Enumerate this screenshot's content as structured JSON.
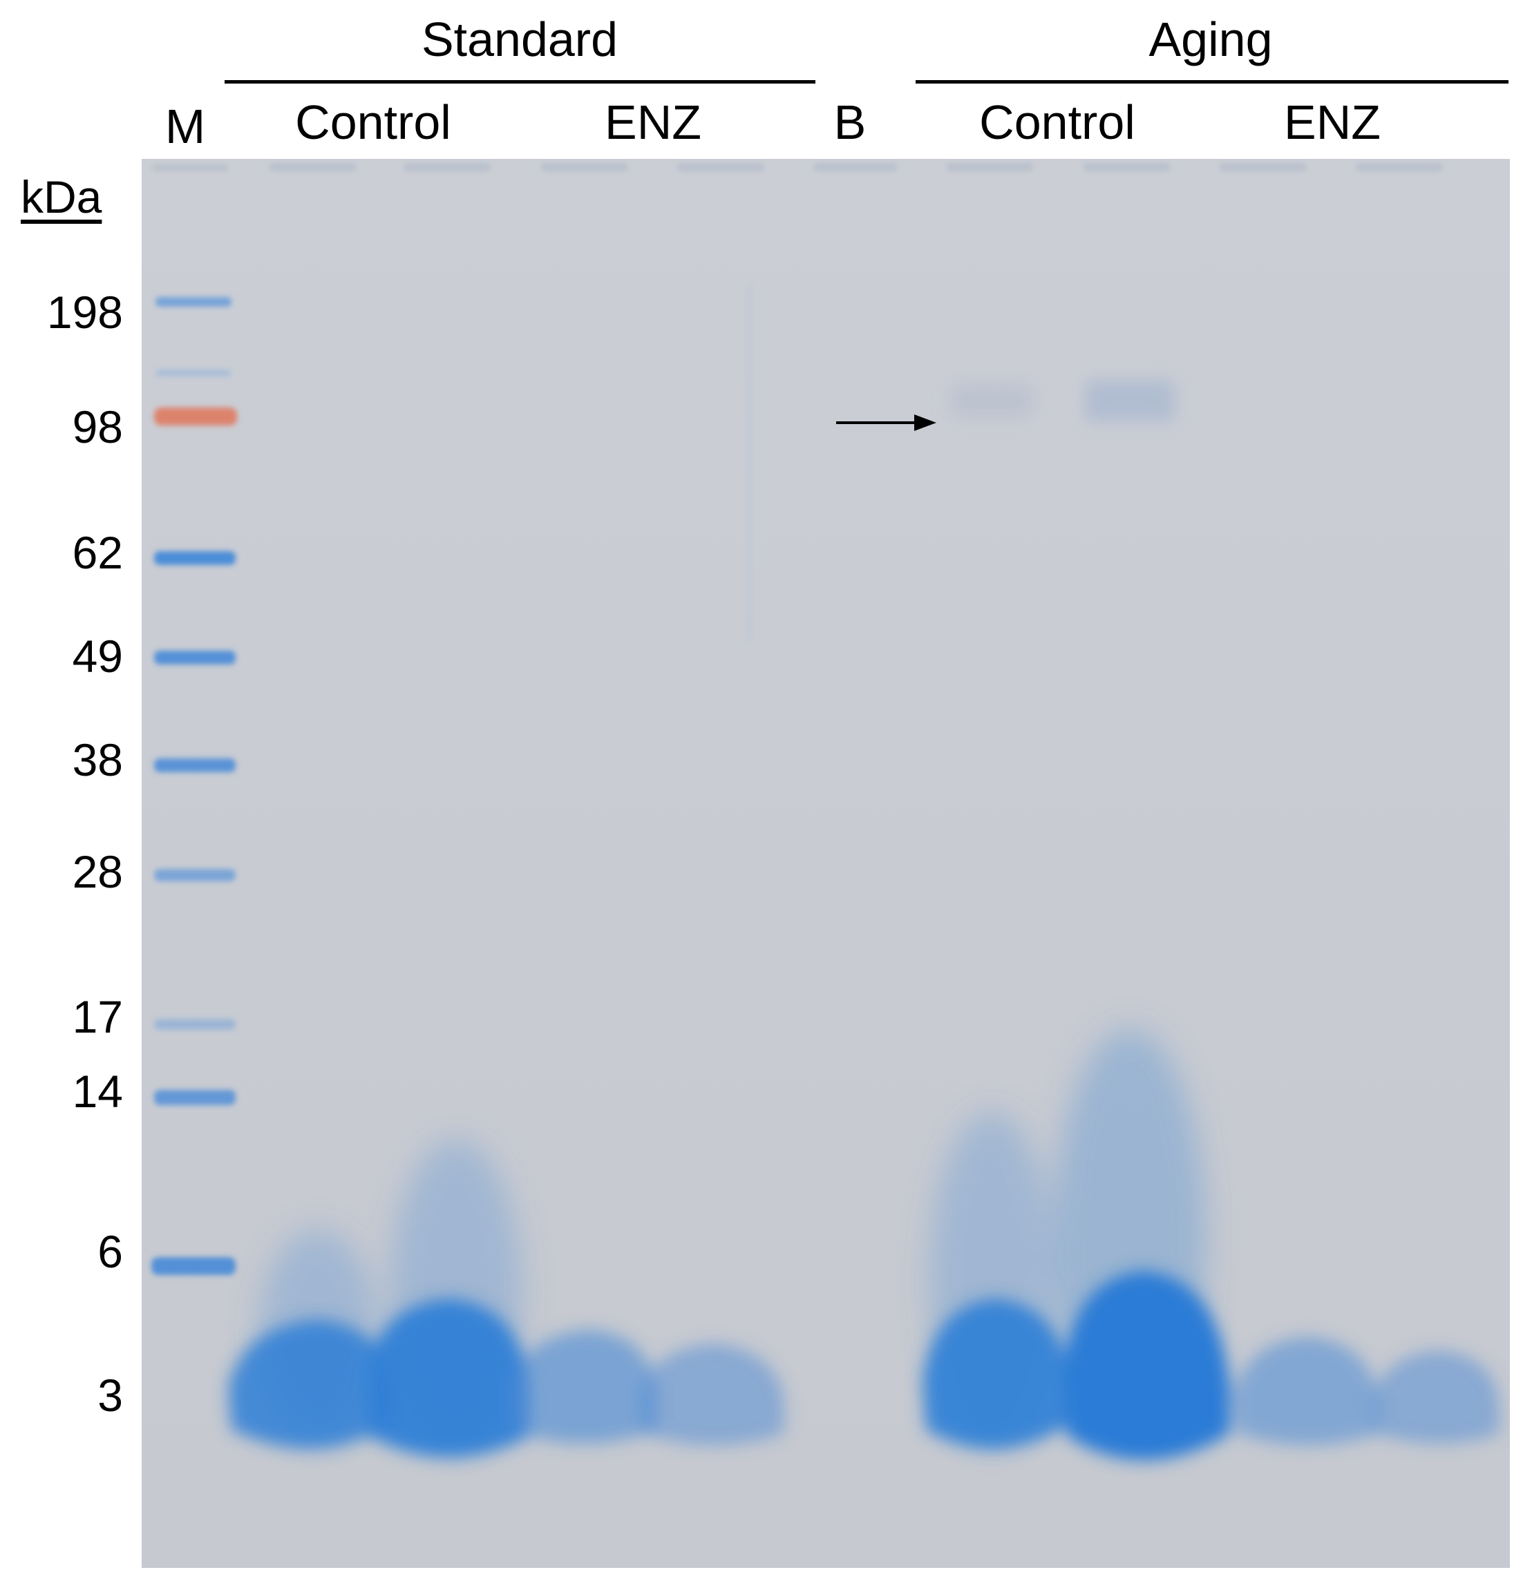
{
  "groups": [
    {
      "label": "Standard"
    },
    {
      "label": "Aging"
    }
  ],
  "lanes": {
    "marker": "M",
    "standard_control": "Control",
    "standard_enz": "ENZ",
    "blank": "B",
    "aging_control": "Control",
    "aging_enz": "ENZ"
  },
  "unit_label": "kDa",
  "ladder": [
    "198",
    "98",
    "62",
    "49",
    "38",
    "28",
    "17",
    "14",
    "6",
    "3"
  ],
  "colors": {
    "gel_background": "#c9ccd3",
    "band_blue": "#2f7fd6",
    "ladder_98_orange": "#e0765a",
    "ladder_blue": "#3f86d8"
  }
}
